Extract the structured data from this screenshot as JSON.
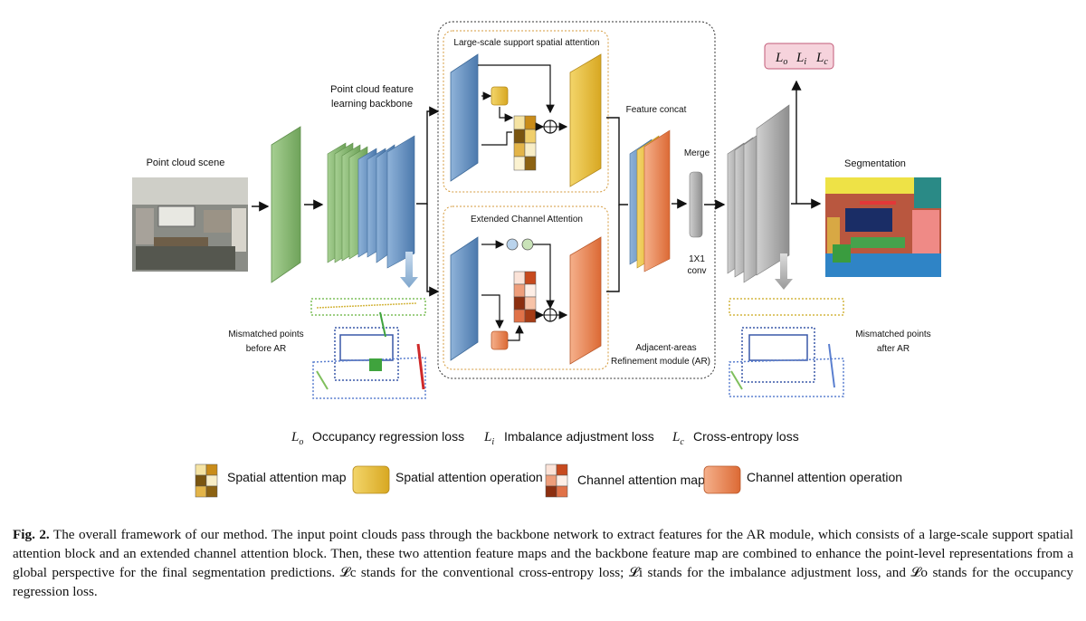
{
  "labels": {
    "scene": "Point cloud scene",
    "backbone_1": "Point cloud feature",
    "backbone_2": "learning backbone",
    "lss_title": "Large-scale support spatial attention",
    "eca_title": "Extended Channel Attention",
    "feature_concat": "Feature concat",
    "merge": "Merge",
    "conv_1": "1X1",
    "conv_2": "conv",
    "module_1": "Adjacent-areas",
    "module_2": "Refinement module (AR)",
    "segmentation": "Segmentation",
    "before_1": "Mismatched points",
    "before_2": "before AR",
    "after_1": "Mismatched points",
    "after_2": "after AR",
    "loss_box": {
      "lo": "L",
      "lo_sub": "o",
      "li": "L",
      "li_sub": "i",
      "lc": "L",
      "lc_sub": "c"
    }
  },
  "loss_legend": [
    {
      "sym": "L",
      "sub": "o",
      "text": "Occupancy regression loss"
    },
    {
      "sym": "L",
      "sub": "i",
      "text": "Imbalance adjustment loss"
    },
    {
      "sym": "L",
      "sub": "c",
      "text": "Cross-entropy loss"
    }
  ],
  "op_legend": [
    {
      "text": "Spatial attention map"
    },
    {
      "text": "Spatial attention operation"
    },
    {
      "text": "Channel attention map"
    },
    {
      "text": "Channel attention operation"
    }
  ],
  "colors": {
    "green": "#7fb06a",
    "blue": "#5b87b8",
    "yellow": "#e2b935",
    "orange": "#e07a45",
    "gray": "#a8a8a8",
    "loss_box_fill": "#f6d3dc",
    "loss_box_stroke": "#c25b78"
  },
  "caption": {
    "fig": "Fig. 2.",
    "text": "The overall framework of our method. The input point clouds pass through the backbone network to extract features for the AR module, which consists of a large-scale support spatial attention block and an extended channel attention block. Then, these two attention feature maps and the backbone feature map are combined to enhance the point-level representations from a global perspective for the final segmentation predictions. 𝓛c stands for the conventional cross-entropy loss; 𝓛i stands for the imbalance adjustment loss, and 𝓛o stands for the occupancy regression loss."
  }
}
